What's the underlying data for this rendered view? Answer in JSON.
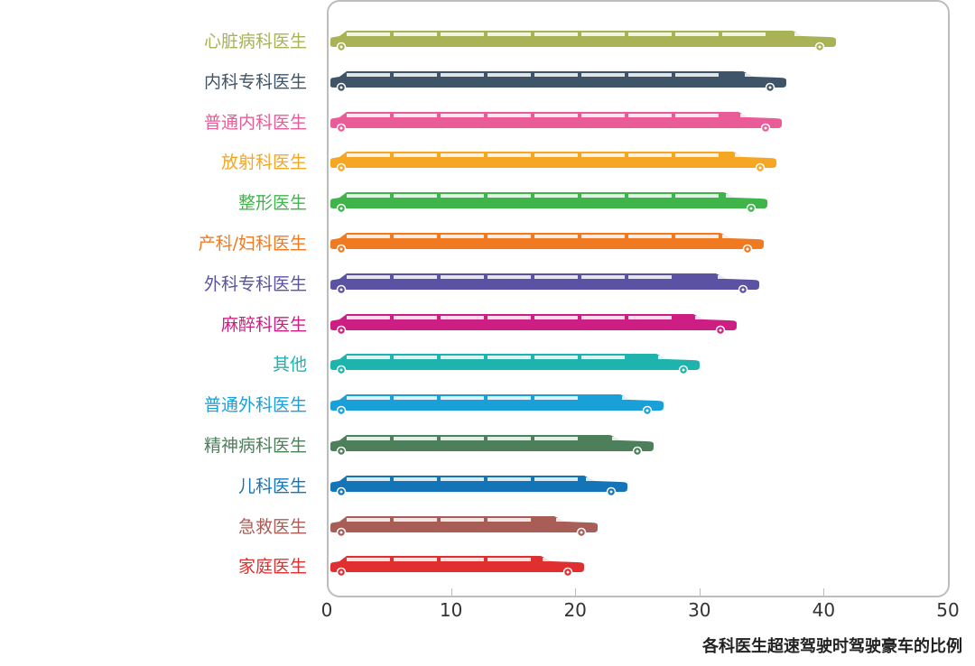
{
  "chart_data": {
    "type": "bar",
    "orientation": "horizontal",
    "title": "",
    "xlabel": "各科医生超速驾驶时驾驶豪车的比例",
    "ylabel": "",
    "xlim": [
      0,
      50
    ],
    "xticks": [
      "0",
      "10",
      "20",
      "30",
      "40",
      "50"
    ],
    "grid": false,
    "legend": null,
    "categories": [
      "心脏病科医生",
      "内科专科医生",
      "普通内科医生",
      "放射科医生",
      "整形医生",
      "产科/妇科医生",
      "外科专科医生",
      "麻醉科医生",
      "其他",
      "普通外科医生",
      "精神病科医生",
      "儿科医生",
      "急救医生",
      "家庭医生"
    ],
    "values": [
      41.0,
      37.0,
      36.6,
      36.2,
      35.5,
      35.2,
      34.8,
      33.0,
      30.0,
      27.1,
      26.3,
      24.2,
      21.8,
      20.7
    ],
    "colors": [
      "#a9b255",
      "#3f5468",
      "#ea5c97",
      "#f5a623",
      "#3fb449",
      "#f07a22",
      "#5b52a3",
      "#cd1f83",
      "#1fb3ae",
      "#1aa0d8",
      "#4e7f5b",
      "#1474b8",
      "#a85d57",
      "#e02f2f"
    ],
    "bar_style": "limousine-icon"
  }
}
